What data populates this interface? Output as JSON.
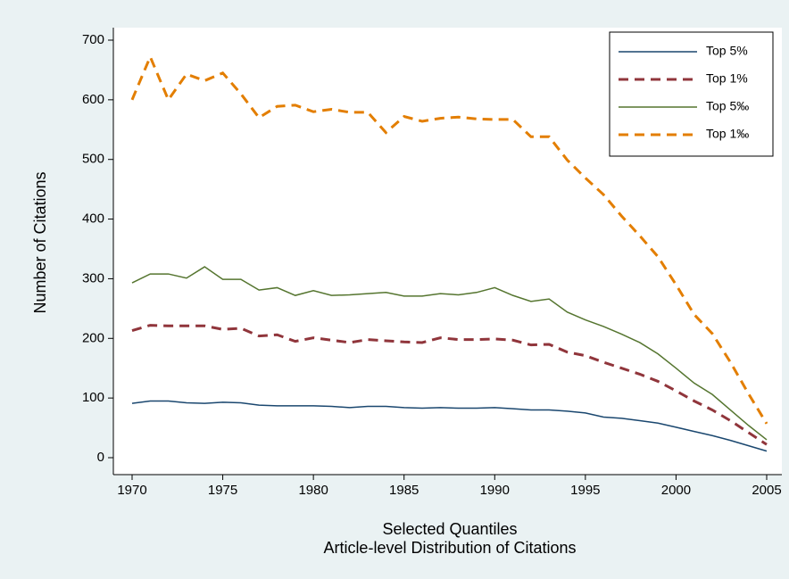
{
  "chart_data": {
    "type": "line",
    "ylabel": "Number of Citations",
    "xlabel": [
      "Selected Quantiles",
      "Article-level Distribution of Citations"
    ],
    "x": [
      1970,
      1971,
      1972,
      1973,
      1974,
      1975,
      1976,
      1977,
      1978,
      1979,
      1980,
      1981,
      1982,
      1983,
      1984,
      1985,
      1986,
      1987,
      1988,
      1989,
      1990,
      1991,
      1992,
      1993,
      1994,
      1995,
      1996,
      1997,
      1998,
      1999,
      2000,
      2001,
      2002,
      2003,
      2004,
      2005
    ],
    "series": [
      {
        "name": "Top 5%",
        "color": "#1a476f",
        "dashed": false,
        "values": [
          91,
          95,
          95,
          92,
          91,
          93,
          92,
          88,
          87,
          87,
          87,
          86,
          84,
          86,
          86,
          84,
          83,
          84,
          83,
          83,
          84,
          82,
          80,
          80,
          78,
          75,
          68,
          66,
          62,
          58,
          51,
          44,
          37,
          29,
          20,
          11
        ]
      },
      {
        "name": "Top 1%",
        "color": "#90353b",
        "dashed": true,
        "values": [
          213,
          222,
          221,
          221,
          221,
          215,
          217,
          204,
          206,
          195,
          201,
          197,
          193,
          198,
          196,
          194,
          193,
          201,
          198,
          198,
          199,
          197,
          189,
          190,
          177,
          171,
          160,
          150,
          140,
          128,
          112,
          95,
          80,
          62,
          42,
          22
        ]
      },
      {
        "name": "Top 5‰",
        "color": "#55752f",
        "dashed": false,
        "values": [
          293,
          308,
          308,
          301,
          320,
          299,
          299,
          281,
          285,
          272,
          280,
          272,
          273,
          275,
          277,
          271,
          271,
          275,
          273,
          277,
          285,
          272,
          262,
          266,
          244,
          231,
          220,
          207,
          193,
          174,
          150,
          125,
          106,
          80,
          54,
          30
        ]
      },
      {
        "name": "Top 1‰",
        "color": "#e37e00",
        "dashed": true,
        "values": [
          600,
          672,
          600,
          643,
          632,
          645,
          610,
          570,
          589,
          591,
          580,
          584,
          579,
          579,
          545,
          572,
          564,
          569,
          571,
          568,
          567,
          567,
          538,
          538,
          499,
          469,
          441,
          405,
          372,
          337,
          290,
          240,
          208,
          160,
          107,
          57
        ]
      }
    ],
    "xlim": [
      1970,
      2005
    ],
    "xticks": [
      1970,
      1975,
      1980,
      1985,
      1990,
      1995,
      2000,
      2005
    ],
    "ylim": [
      0,
      700
    ],
    "yticks": [
      0,
      100,
      200,
      300,
      400,
      500,
      600,
      700
    ],
    "grid": false,
    "legend": "top-right"
  }
}
